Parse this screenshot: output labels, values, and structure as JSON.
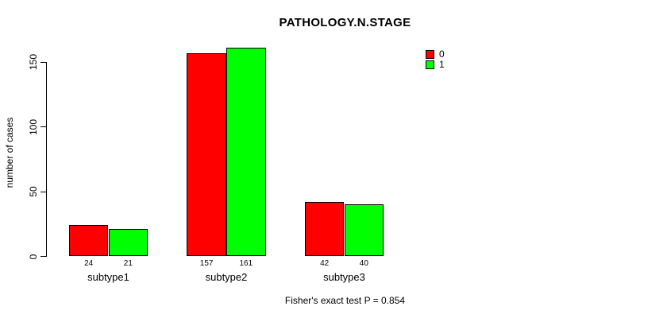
{
  "chart_data": {
    "type": "bar",
    "title": "PATHOLOGY.N.STAGE",
    "categories": [
      "subtype1",
      "subtype2",
      "subtype3"
    ],
    "series": [
      {
        "name": "0",
        "color": "#ff0000",
        "values": [
          24,
          157,
          42
        ]
      },
      {
        "name": "1",
        "color": "#00ff00",
        "values": [
          21,
          161,
          40
        ]
      }
    ],
    "xlabel": "",
    "ylabel": "number of cases",
    "yticks": [
      0,
      50,
      100,
      150
    ],
    "ylim": [
      0,
      150
    ],
    "bar_value_labels": [
      [
        "24",
        "21"
      ],
      [
        "157",
        "161"
      ],
      [
        "42",
        "40"
      ]
    ],
    "grid": false,
    "legend_position": "top-right",
    "annotation": "Fisher's exact test P = 0.854",
    "colors": {
      "background": "#ffffff",
      "axis": "#000000",
      "text": "#000000"
    }
  }
}
